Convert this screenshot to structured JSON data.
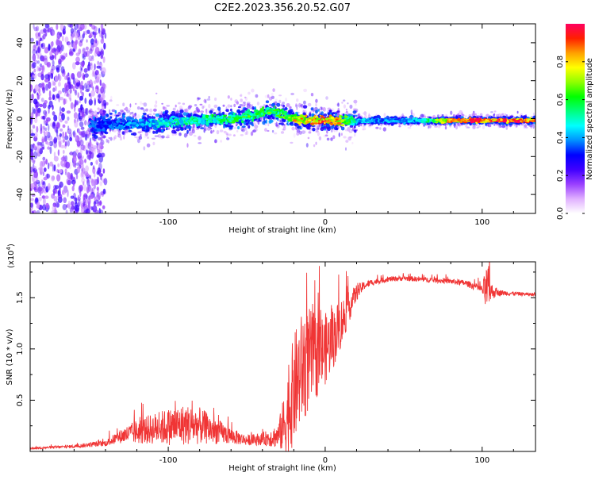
{
  "chart_data": [
    {
      "type": "heatmap",
      "title": "C2E2.2023.356.20.52.G07",
      "xlabel": "Height of straight line (km)",
      "ylabel": "Frequency (Hz)",
      "xlim": [
        -188,
        134
      ],
      "ylim": [
        -50,
        50
      ],
      "xticks": [
        -100,
        0,
        100
      ],
      "yticks": [
        -40,
        -20,
        0,
        20,
        40
      ],
      "colorbar": {
        "label": "Normalized spectral amplitude",
        "range": [
          0,
          1
        ],
        "ticks": [
          0.0,
          0.2,
          0.4,
          0.6,
          0.8
        ],
        "colors": [
          "#ffffff",
          "#e0b0ff",
          "#9a40ff",
          "#4000ff",
          "#0000ff",
          "#0090ff",
          "#00ffff",
          "#00ff80",
          "#00ff00",
          "#90ff00",
          "#ffff00",
          "#ffa000",
          "#ff2000",
          "#ff0060"
        ]
      },
      "ridge": {
        "x": [
          -188,
          -150,
          -140,
          -120,
          -100,
          -80,
          -60,
          -45,
          -35,
          -30,
          -20,
          -10,
          0,
          10,
          20,
          40,
          60,
          80,
          100,
          120,
          134
        ],
        "y": [
          -4,
          -4,
          -3,
          -3,
          -2,
          -1,
          0,
          2,
          4,
          3,
          0,
          -1,
          -1,
          -1,
          -1,
          -1,
          -1,
          -1,
          -1,
          -1,
          -1
        ],
        "amplitude": [
          0.15,
          0.18,
          0.35,
          0.42,
          0.5,
          0.55,
          0.6,
          0.62,
          0.65,
          0.6,
          0.8,
          0.85,
          0.9,
          0.8,
          0.45,
          0.42,
          0.45,
          0.9,
          0.95,
          0.95,
          0.95
        ]
      }
    },
    {
      "type": "line",
      "ylabel": "SNR (10 * v/v)",
      "xlabel": "Height of straight line (km)",
      "scale_label": "(x10",
      "scale_exponent": "4",
      "scale_close": ")",
      "xlim": [
        -188,
        134
      ],
      "ylim": [
        0,
        18500
      ],
      "xticks": [
        -100,
        0,
        100
      ],
      "yticks": [
        5000,
        10000,
        15000
      ],
      "ytick_labels": [
        "0.5",
        "1.0",
        "1.5"
      ],
      "line_color": "#f03535",
      "envelope": {
        "x": [
          -188,
          -160,
          -140,
          -130,
          -120,
          -110,
          -100,
          -90,
          -80,
          -70,
          -60,
          -50,
          -40,
          -30,
          -25,
          -20,
          -15,
          -10,
          -5,
          0,
          5,
          10,
          15,
          20,
          25,
          30,
          40,
          50,
          60,
          70,
          80,
          90,
          100,
          102,
          104,
          106,
          110,
          120,
          134
        ],
        "mean": [
          300,
          500,
          800,
          1500,
          1900,
          2200,
          2400,
          2600,
          2500,
          2000,
          1500,
          1100,
          1200,
          1500,
          3000,
          6000,
          8000,
          9000,
          9300,
          10000,
          11000,
          12500,
          14000,
          15500,
          16200,
          16500,
          16800,
          16900,
          16800,
          16700,
          16600,
          16400,
          15800,
          15700,
          16000,
          15600,
          15500,
          15400,
          15300
        ],
        "amp": [
          100,
          150,
          300,
          700,
          1200,
          1500,
          1800,
          2000,
          1800,
          1300,
          800,
          500,
          600,
          1200,
          3500,
          5500,
          5500,
          5000,
          4000,
          3500,
          3000,
          2500,
          1500,
          800,
          400,
          300,
          250,
          250,
          250,
          250,
          250,
          300,
          400,
          2000,
          2200,
          800,
          300,
          200,
          150
        ]
      }
    }
  ]
}
